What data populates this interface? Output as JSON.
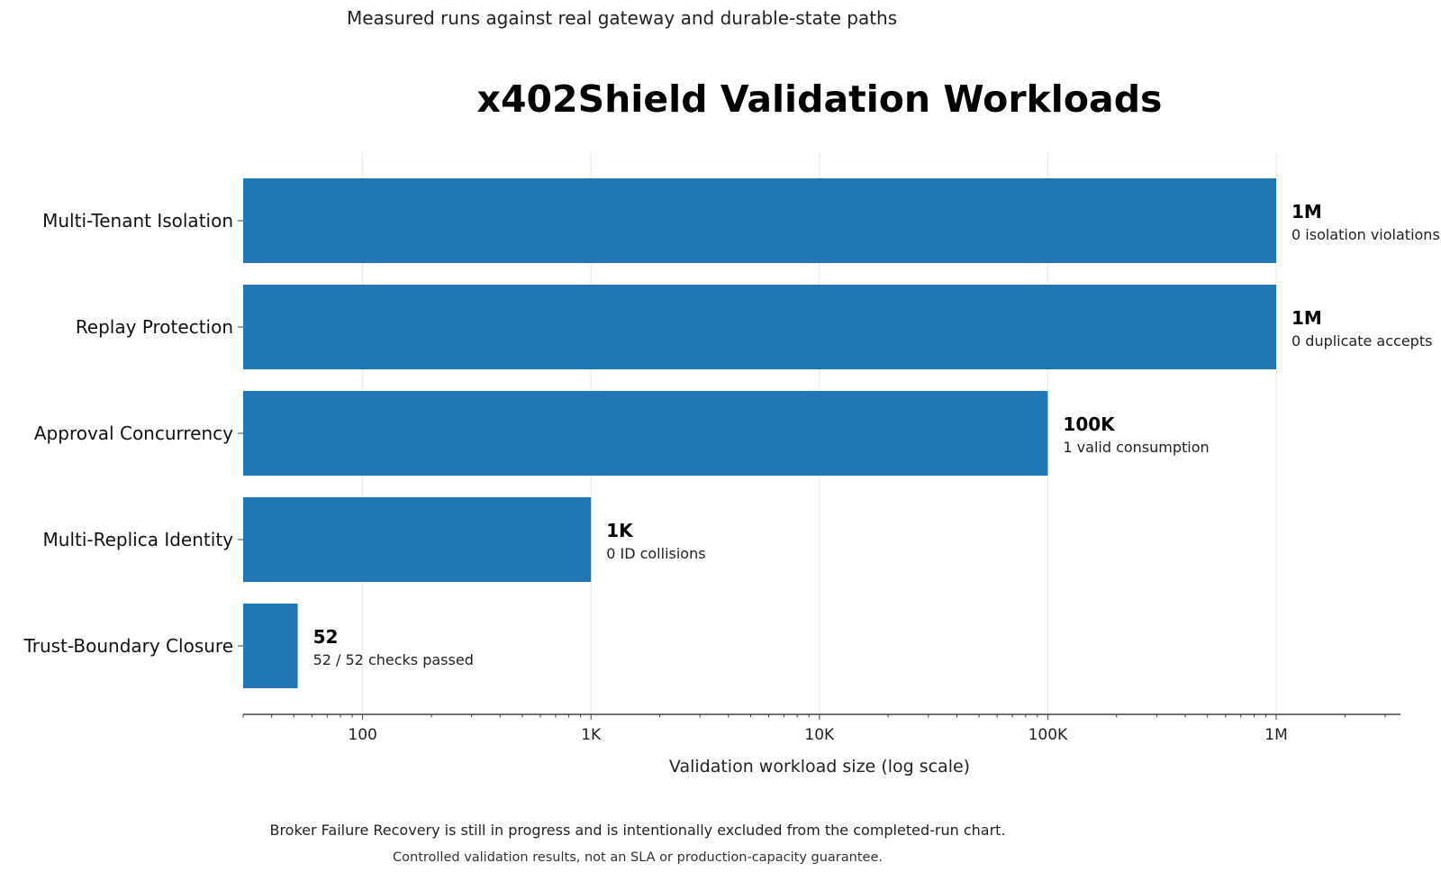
{
  "subtitle": "Measured runs against real gateway and durable-state paths",
  "footnote_primary": "Broker Failure Recovery is still in progress and is intentionally excluded from the completed-run chart.",
  "footnote_secondary": "Controlled validation results, not an SLA or production-capacity guarantee.",
  "colors": {
    "bar": "#2077b4",
    "grid": "#ebebeb",
    "axis": "#444444"
  },
  "chart_data": {
    "type": "bar",
    "orientation": "horizontal",
    "title": "x402Shield Validation Workloads",
    "xlabel": "Validation workload size (log scale)",
    "ylabel": "",
    "x_scale": "log",
    "xlim": [
      30,
      3500000
    ],
    "grid": "vertical",
    "x_ticks": [
      {
        "value": 100,
        "label": "100"
      },
      {
        "value": 1000,
        "label": "1K"
      },
      {
        "value": 10000,
        "label": "10K"
      },
      {
        "value": 100000,
        "label": "100K"
      },
      {
        "value": 1000000,
        "label": "1M"
      }
    ],
    "categories": [
      "Multi-Tenant Isolation",
      "Replay Protection",
      "Approval Concurrency",
      "Multi-Replica Identity",
      "Trust-Boundary Closure"
    ],
    "values": [
      1000000,
      1000000,
      100000,
      1000,
      52
    ],
    "value_labels": [
      "1M",
      "1M",
      "100K",
      "1K",
      "52"
    ],
    "annotations": [
      "0 isolation violations",
      "0 duplicate accepts",
      "1 valid consumption",
      "0 ID collisions",
      "52 / 52 checks passed"
    ]
  }
}
